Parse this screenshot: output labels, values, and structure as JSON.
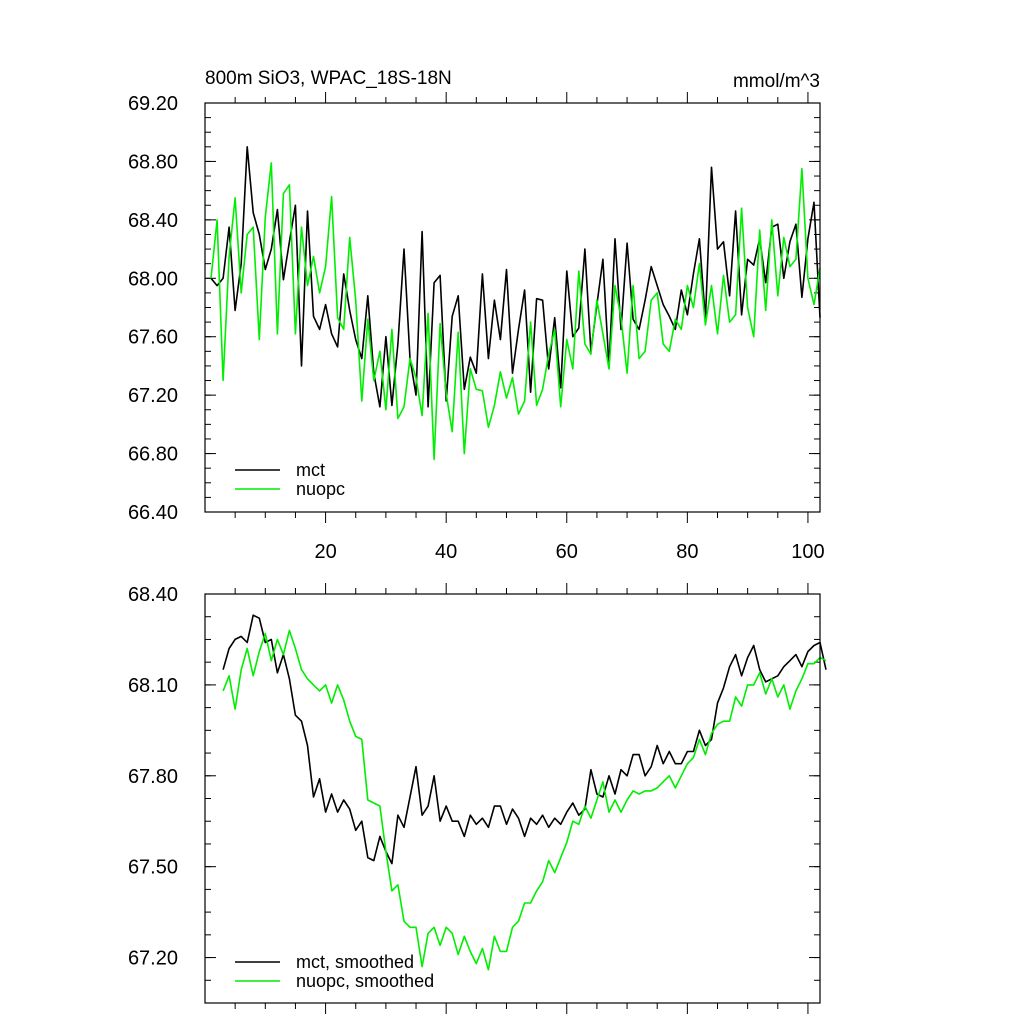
{
  "chart_data": [
    {
      "type": "line",
      "title": "800m SiO3, WPAC_18S-18N",
      "units": "mmol/m^3",
      "xlim": [
        0,
        102
      ],
      "ylim": [
        66.4,
        69.2
      ],
      "xticks": [
        20,
        40,
        60,
        80,
        100
      ],
      "xtick_labels": [
        "20",
        "40",
        "60",
        "80",
        "100"
      ],
      "yticks": [
        66.4,
        66.8,
        67.2,
        67.6,
        68.0,
        68.4,
        68.8,
        69.2
      ],
      "ytick_labels": [
        "66.40",
        "66.80",
        "67.20",
        "67.60",
        "68.00",
        "68.40",
        "68.80",
        "69.20"
      ],
      "legend_position": "bottom-left",
      "series": [
        {
          "name": "mct",
          "color": "#000000",
          "x0": 1,
          "values": [
            68.0,
            67.95,
            68.0,
            68.35,
            67.78,
            68.1,
            68.9,
            68.45,
            68.3,
            68.06,
            68.2,
            68.47,
            67.99,
            68.25,
            68.5,
            67.4,
            68.46,
            67.74,
            67.65,
            67.82,
            67.62,
            67.53,
            68.03,
            67.78,
            67.58,
            67.45,
            67.88,
            67.35,
            67.12,
            67.6,
            67.13,
            67.55,
            68.2,
            67.45,
            67.2,
            68.32,
            67.12,
            67.97,
            68.02,
            67.16,
            67.74,
            67.88,
            67.24,
            67.46,
            67.35,
            68.03,
            67.45,
            67.85,
            67.58,
            68.06,
            67.35,
            67.65,
            67.92,
            67.22,
            67.86,
            67.85,
            67.38,
            67.73,
            67.25,
            68.05,
            67.6,
            67.66,
            68.2,
            67.5,
            67.82,
            68.13,
            67.39,
            68.27,
            67.65,
            68.24,
            67.72,
            67.65,
            67.85,
            68.08,
            67.95,
            67.82,
            67.74,
            67.65,
            67.92,
            67.75,
            68.03,
            68.27,
            67.72,
            68.76,
            68.2,
            68.25,
            67.88,
            68.46,
            67.75,
            68.13,
            68.09,
            68.27,
            67.97,
            68.35,
            68.37,
            68.0,
            68.25,
            68.37,
            67.87,
            68.27,
            68.52,
            67.73
          ]
        },
        {
          "name": "nuopc",
          "color": "#00ee00",
          "x0": 1,
          "values": [
            68.0,
            68.4,
            67.3,
            68.15,
            68.55,
            67.9,
            68.3,
            68.35,
            67.58,
            68.42,
            68.79,
            67.62,
            68.58,
            68.64,
            67.62,
            68.35,
            67.95,
            68.15,
            67.9,
            68.08,
            68.56,
            67.73,
            67.65,
            68.28,
            67.85,
            67.16,
            67.72,
            67.3,
            67.5,
            67.1,
            67.65,
            67.04,
            67.12,
            67.45,
            67.32,
            67.06,
            67.76,
            66.76,
            67.69,
            67.21,
            66.95,
            67.63,
            66.8,
            67.38,
            67.24,
            67.23,
            66.98,
            67.13,
            67.36,
            67.18,
            67.32,
            67.07,
            67.16,
            67.7,
            67.13,
            67.24,
            67.48,
            67.65,
            67.12,
            67.58,
            67.38,
            68.05,
            67.55,
            67.48,
            67.85,
            67.62,
            67.38,
            67.95,
            67.73,
            67.35,
            67.95,
            67.45,
            67.5,
            67.85,
            67.9,
            67.55,
            67.5,
            67.72,
            67.65,
            67.95,
            67.8,
            68.1,
            67.68,
            67.95,
            67.62,
            68.02,
            67.7,
            67.75,
            68.48,
            67.8,
            67.6,
            68.33,
            67.78,
            68.4,
            67.88,
            68.28,
            68.08,
            68.13,
            68.75,
            68.0,
            67.82,
            68.07
          ]
        }
      ]
    },
    {
      "type": "line",
      "title": "",
      "xlim": [
        0,
        102
      ],
      "ylim": [
        67.05,
        68.4
      ],
      "xticks": [
        20,
        40,
        60,
        80,
        100
      ],
      "xtick_labels": [],
      "yticks": [
        67.2,
        67.5,
        67.8,
        68.1,
        68.4
      ],
      "ytick_labels": [
        "67.20",
        "67.50",
        "67.80",
        "68.10",
        "68.40"
      ],
      "legend_position": "bottom-left",
      "series": [
        {
          "name": "mct, smoothed",
          "color": "#000000",
          "x0": 3,
          "values": [
            68.15,
            68.22,
            68.25,
            68.26,
            68.24,
            68.33,
            68.32,
            68.24,
            68.25,
            68.14,
            68.2,
            68.12,
            68.0,
            67.98,
            67.9,
            67.73,
            67.79,
            67.68,
            67.74,
            67.68,
            67.72,
            67.69,
            67.62,
            67.65,
            67.53,
            67.52,
            67.6,
            67.55,
            67.51,
            67.67,
            67.63,
            67.73,
            67.83,
            67.67,
            67.7,
            67.8,
            67.65,
            67.7,
            67.65,
            67.65,
            67.6,
            67.67,
            67.64,
            67.66,
            67.63,
            67.7,
            67.7,
            67.64,
            67.69,
            67.66,
            67.6,
            67.66,
            67.64,
            67.67,
            67.63,
            67.66,
            67.64,
            67.68,
            67.71,
            67.67,
            67.69,
            67.82,
            67.74,
            67.73,
            67.8,
            67.74,
            67.82,
            67.8,
            67.87,
            67.87,
            67.8,
            67.83,
            67.9,
            67.84,
            67.88,
            67.84,
            67.84,
            67.88,
            67.88,
            67.95,
            67.9,
            67.92,
            68.04,
            68.09,
            68.16,
            68.2,
            68.13,
            68.19,
            68.23,
            68.15,
            68.11,
            68.12,
            68.13,
            68.16,
            68.18,
            68.2,
            68.16,
            68.21,
            68.23,
            68.24,
            68.15
          ]
        },
        {
          "name": "nuopc, smoothed",
          "color": "#00ee00",
          "x0": 3,
          "values": [
            68.08,
            68.13,
            68.02,
            68.15,
            68.22,
            68.13,
            68.21,
            68.27,
            68.18,
            68.25,
            68.2,
            68.28,
            68.22,
            68.15,
            68.12,
            68.1,
            68.08,
            68.1,
            68.04,
            68.1,
            68.05,
            67.98,
            67.93,
            67.92,
            67.72,
            67.71,
            67.7,
            67.55,
            67.42,
            67.44,
            67.32,
            67.3,
            67.3,
            67.17,
            67.28,
            67.3,
            67.24,
            67.3,
            67.28,
            67.21,
            67.27,
            67.22,
            67.18,
            67.23,
            67.16,
            67.27,
            67.22,
            67.22,
            67.3,
            67.32,
            67.38,
            67.38,
            67.42,
            67.45,
            67.52,
            67.48,
            67.53,
            67.58,
            67.65,
            67.64,
            67.7,
            67.66,
            67.72,
            67.78,
            67.68,
            67.72,
            67.68,
            67.72,
            67.75,
            67.74,
            67.75,
            67.75,
            67.76,
            67.78,
            67.8,
            67.76,
            67.8,
            67.84,
            67.86,
            67.92,
            67.87,
            67.94,
            67.97,
            67.98,
            67.98,
            68.06,
            68.03,
            68.1,
            68.1,
            68.14,
            68.07,
            68.12,
            68.06,
            68.1,
            68.02,
            68.08,
            68.12,
            68.17,
            68.17,
            68.19,
            68.18
          ]
        }
      ]
    }
  ]
}
